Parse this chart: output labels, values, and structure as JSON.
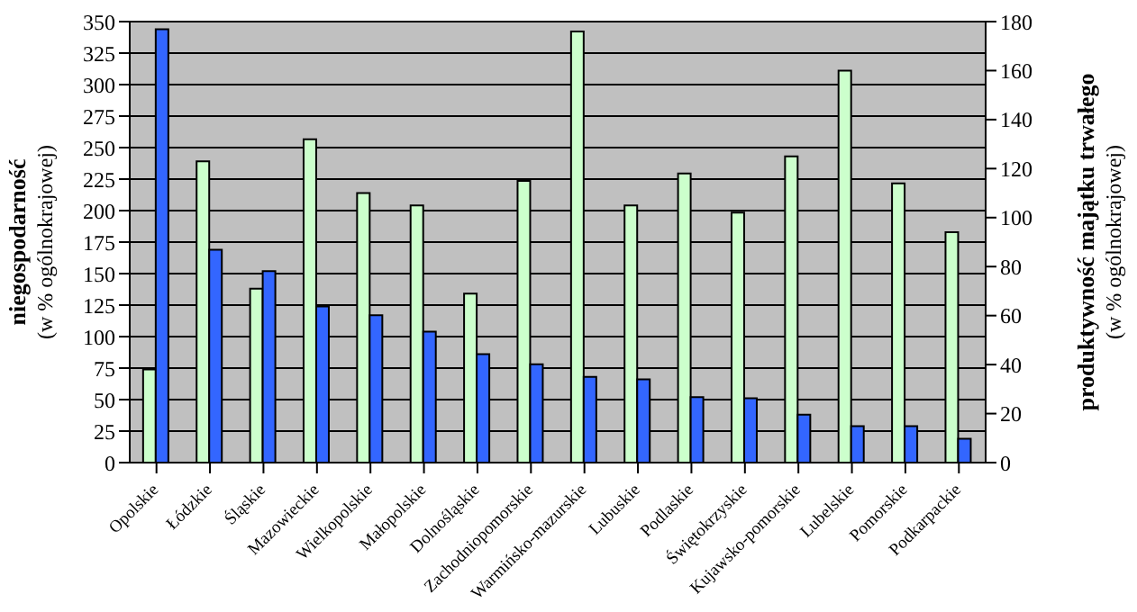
{
  "chart_data": {
    "type": "bar",
    "ylabel": "niegospodarność\n(w % ogólnokrajowej)",
    "y2label": "produktywność majątku trwałego\n(w % ogólnokrajowej)",
    "categories": [
      "Opolskie",
      "Łódzkie",
      "Śląskie",
      "Mazowieckie",
      "Wielkopolskie",
      "Małopolskie",
      "Dolnośląskie",
      "Zachodniopomorskie",
      "Warmińsko-mazurskie",
      "Lubuskie",
      "Podlaskie",
      "Świętokrzyskie",
      "Kujawsko-pomorskie",
      "Lubelskie",
      "Pomorskie",
      "Podkarpackie"
    ],
    "series": [
      {
        "color": "#ccffcc",
        "axis": "y2",
        "values": [
          38,
          123,
          71,
          132,
          110,
          105,
          69,
          115,
          176,
          105,
          118,
          102,
          125,
          160,
          114,
          94
        ]
      },
      {
        "color": "#3366ff",
        "values": [
          344,
          169,
          152,
          124,
          117,
          104,
          86,
          78,
          68,
          66,
          52,
          51,
          38,
          29,
          29,
          19
        ]
      }
    ],
    "ylim": [
      0,
      350
    ],
    "yticks": [
      0,
      25,
      50,
      75,
      100,
      125,
      150,
      175,
      200,
      225,
      250,
      275,
      300,
      325,
      350
    ],
    "y2lim": [
      0,
      180
    ],
    "y2ticks": [
      0,
      20,
      40,
      60,
      80,
      100,
      120,
      140,
      160,
      180
    ],
    "grid": "y"
  }
}
